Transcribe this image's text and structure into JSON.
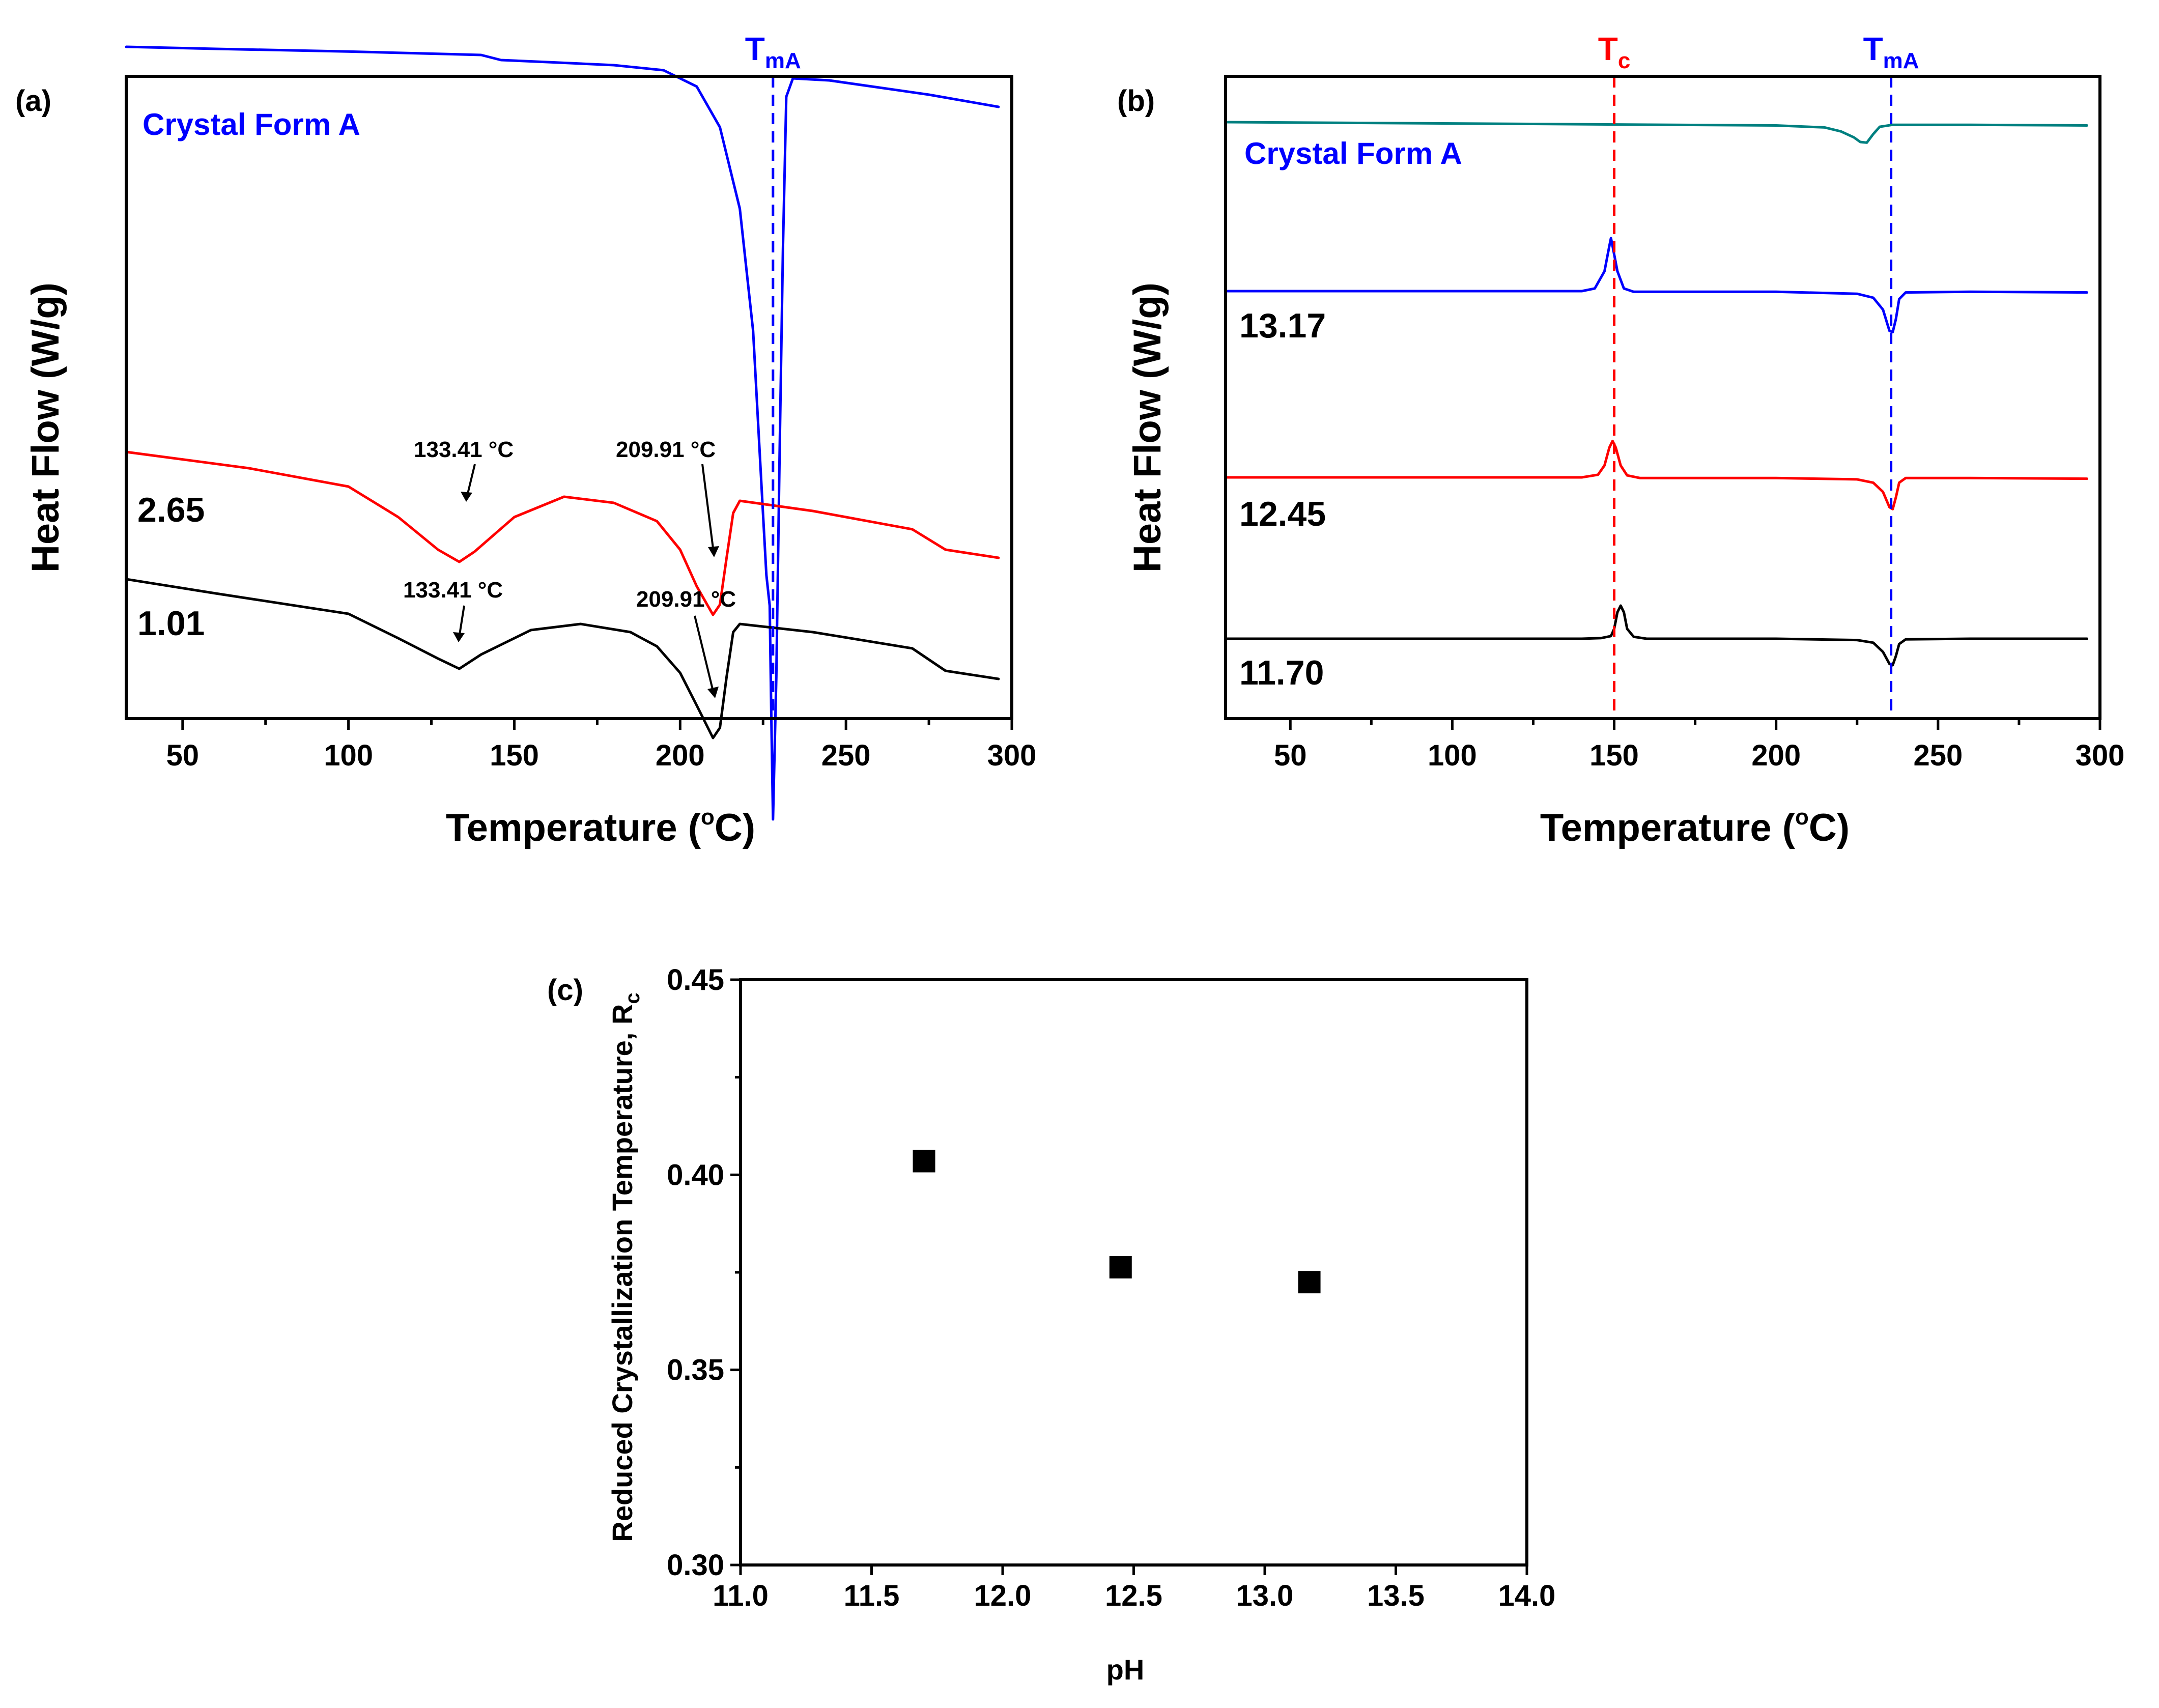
{
  "chart_data": [
    {
      "panel": "(a)",
      "type": "line",
      "xlabel": "Temperature (°C)",
      "xlabel_main": "Temperature (",
      "xlabel_degree": "o",
      "xlabel_unit": "C)",
      "ylabel": "Heat Flow (W/g)",
      "xlim": [
        33,
        300
      ],
      "xticks": [
        50,
        100,
        150,
        200,
        250,
        300
      ],
      "series": [
        {
          "name": "Crystal Form A",
          "label": "Crystal Form A",
          "color": "#0000ff",
          "points": [
            [
              33,
              0.5
            ],
            [
              60,
              1.5
            ],
            [
              100,
              2.8
            ],
            [
              140,
              4.5
            ],
            [
              146,
              7
            ],
            [
              160,
              8
            ],
            [
              180,
              9.5
            ],
            [
              195,
              12
            ],
            [
              205,
              20
            ],
            [
              212,
              40
            ],
            [
              218,
              80
            ],
            [
              222,
              140
            ],
            [
              225,
              230
            ],
            [
              226,
              260
            ],
            [
              227,
              275
            ],
            [
              227.5,
              330
            ],
            [
              228,
              380
            ],
            [
              229,
              310
            ],
            [
              230,
              200
            ],
            [
              231,
              100
            ],
            [
              232,
              25
            ],
            [
              234,
              16
            ],
            [
              245,
              17
            ],
            [
              275,
              24
            ],
            [
              296,
              30
            ]
          ]
        },
        {
          "name": "2.65",
          "label": "2.65",
          "color": "#ff0000",
          "points": [
            [
              33,
              0
            ],
            [
              70,
              8
            ],
            [
              100,
              17
            ],
            [
              115,
              32
            ],
            [
              127,
              48
            ],
            [
              133.41,
              54
            ],
            [
              138,
              49
            ],
            [
              150,
              32
            ],
            [
              165,
              22
            ],
            [
              180,
              25
            ],
            [
              193,
              34
            ],
            [
              200,
              48
            ],
            [
              205,
              66
            ],
            [
              209.91,
              80
            ],
            [
              212,
              75
            ],
            [
              214,
              52
            ],
            [
              216,
              30
            ],
            [
              218,
              24
            ],
            [
              240,
              29
            ],
            [
              270,
              38
            ],
            [
              280,
              48
            ],
            [
              296,
              52
            ]
          ]
        },
        {
          "name": "1.01",
          "label": "1.01",
          "color": "#000000",
          "points": [
            [
              33,
              0
            ],
            [
              60,
              7
            ],
            [
              100,
              17
            ],
            [
              115,
              29
            ],
            [
              127,
              39
            ],
            [
              133.41,
              44
            ],
            [
              140,
              37
            ],
            [
              155,
              25
            ],
            [
              170,
              22
            ],
            [
              185,
              26
            ],
            [
              193,
              33
            ],
            [
              200,
              46
            ],
            [
              205,
              62
            ],
            [
              209.91,
              78
            ],
            [
              212,
              73
            ],
            [
              214,
              48
            ],
            [
              216,
              26
            ],
            [
              218,
              22
            ],
            [
              240,
              26
            ],
            [
              270,
              34
            ],
            [
              280,
              45
            ],
            [
              296,
              49
            ]
          ]
        }
      ],
      "reference_lines": [
        {
          "label": "T",
          "subscript": "mA",
          "x": 228,
          "color": "#0000ff"
        }
      ],
      "annotations": [
        {
          "text": "133.41 °C",
          "series": "2.65",
          "x": 133.41
        },
        {
          "text": "209.91 °C",
          "series": "2.65",
          "x": 209.91
        },
        {
          "text": "133.41 °C",
          "series": "1.01",
          "x": 133.41
        },
        {
          "text": "209.91 °C",
          "series": "1.01",
          "x": 209.91
        }
      ]
    },
    {
      "panel": "(b)",
      "type": "line",
      "xlabel": "Temperature (°C)",
      "xlabel_main": "Temperature (",
      "xlabel_degree": "o",
      "xlabel_unit": "C)",
      "ylabel": "Heat Flow (W/g)",
      "xlim": [
        30,
        300
      ],
      "xticks": [
        50,
        100,
        150,
        200,
        250,
        300
      ],
      "series": [
        {
          "name": "Crystal Form A",
          "label": "Crystal Form A",
          "color": "#008080",
          "points": [
            [
              30,
              0
            ],
            [
              100,
              2
            ],
            [
              200,
              5
            ],
            [
              215,
              8
            ],
            [
              220,
              14
            ],
            [
              224,
              23
            ],
            [
              226,
              30
            ],
            [
              228,
              31
            ],
            [
              230,
              18
            ],
            [
              232,
              7
            ],
            [
              236,
              4
            ],
            [
              260,
              4
            ],
            [
              296,
              5
            ]
          ]
        },
        {
          "name": "13.17",
          "label": "13.17",
          "color": "#0000ff",
          "points": [
            [
              30,
              0
            ],
            [
              140,
              0
            ],
            [
              144,
              -4
            ],
            [
              147,
              -30
            ],
            [
              148.5,
              -68
            ],
            [
              149,
              -80
            ],
            [
              149.5,
              -68
            ],
            [
              151,
              -30
            ],
            [
              153,
              -4
            ],
            [
              156,
              1
            ],
            [
              200,
              1
            ],
            [
              225,
              4
            ],
            [
              230,
              10
            ],
            [
              233,
              28
            ],
            [
              235,
              60
            ],
            [
              236,
              62
            ],
            [
              237,
              42
            ],
            [
              238,
              12
            ],
            [
              240,
              2
            ],
            [
              260,
              1
            ],
            [
              296,
              2
            ]
          ]
        },
        {
          "name": "12.45",
          "label": "12.45",
          "color": "#ff0000",
          "points": [
            [
              30,
              0
            ],
            [
              140,
              0
            ],
            [
              145,
              -4
            ],
            [
              147,
              -18
            ],
            [
              148.5,
              -45
            ],
            [
              149.5,
              -55
            ],
            [
              150.5,
              -45
            ],
            [
              152,
              -18
            ],
            [
              154,
              -3
            ],
            [
              158,
              1
            ],
            [
              200,
              1
            ],
            [
              225,
              3
            ],
            [
              230,
              8
            ],
            [
              233,
              22
            ],
            [
              235,
              45
            ],
            [
              236,
              48
            ],
            [
              237,
              30
            ],
            [
              238,
              8
            ],
            [
              240,
              1
            ],
            [
              260,
              1
            ],
            [
              296,
              2
            ]
          ]
        },
        {
          "name": "11.70",
          "label": "11.70",
          "color": "#000000",
          "points": [
            [
              30,
              0
            ],
            [
              140,
              0
            ],
            [
              146,
              -1
            ],
            [
              149,
              -4
            ],
            [
              150,
              -15
            ],
            [
              151,
              -40
            ],
            [
              152,
              -50
            ],
            [
              153,
              -40
            ],
            [
              154,
              -15
            ],
            [
              156,
              -3
            ],
            [
              160,
              0
            ],
            [
              200,
              0
            ],
            [
              225,
              2
            ],
            [
              230,
              6
            ],
            [
              233,
              20
            ],
            [
              235,
              38
            ],
            [
              236,
              40
            ],
            [
              237,
              26
            ],
            [
              238,
              8
            ],
            [
              240,
              1
            ],
            [
              260,
              0
            ],
            [
              296,
              0
            ]
          ]
        }
      ],
      "reference_lines": [
        {
          "label": "T",
          "subscript": "c",
          "x": 150,
          "color": "#ff0000"
        },
        {
          "label": "T",
          "subscript": "mA",
          "x": 235.5,
          "color": "#0000ff"
        }
      ]
    },
    {
      "panel": "(c)",
      "type": "scatter",
      "xlabel": "pH",
      "ylabel": "Reduced Crystallization Temperature, R",
      "ylabel_sub": "c",
      "xlim": [
        11.0,
        14.0
      ],
      "ylim": [
        0.3,
        0.45
      ],
      "xticks": [
        "11.0",
        "11.5",
        "12.0",
        "12.5",
        "13.0",
        "13.5",
        "14.0"
      ],
      "yticks": [
        "0.30",
        "0.35",
        "0.40",
        "0.45"
      ],
      "x": [
        11.7,
        12.45,
        13.17
      ],
      "y": [
        0.4035,
        0.3763,
        0.3725
      ]
    }
  ]
}
